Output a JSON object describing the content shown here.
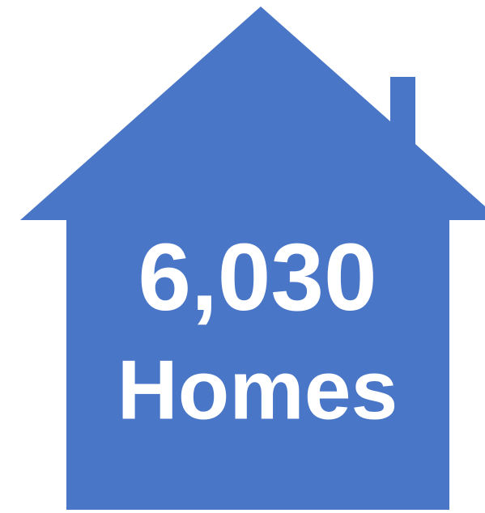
{
  "figure": {
    "number": "6,030",
    "label": "Homes"
  }
}
